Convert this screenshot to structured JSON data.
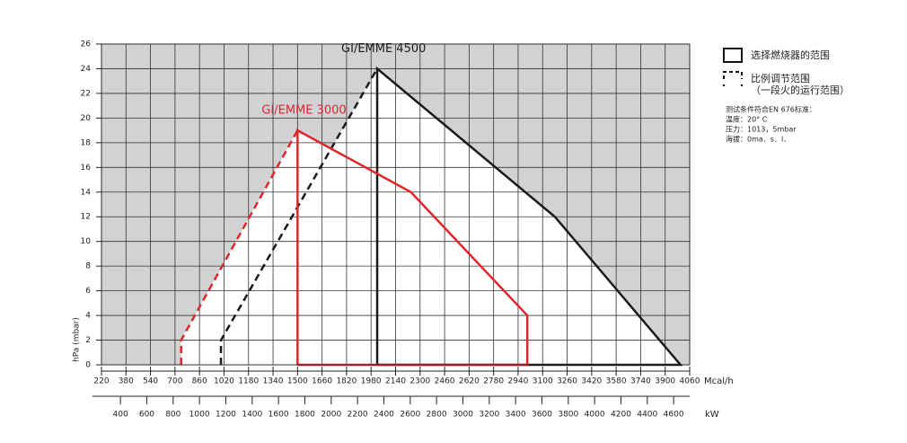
{
  "chart_data": {
    "type": "line",
    "y_label": "hPa (mbar)",
    "x_label": "Mcal/h",
    "x2_label": "kW",
    "xlim": [
      220,
      4060
    ],
    "xticks": [
      220,
      380,
      540,
      700,
      860,
      1020,
      1180,
      1340,
      1500,
      1660,
      1820,
      1980,
      2140,
      2300,
      2460,
      2620,
      2780,
      2940,
      3100,
      3260,
      3420,
      3580,
      3740,
      3900,
      4060
    ],
    "x2lim": [
      255.9,
      4721.8
    ],
    "x2ticks": [
      400,
      600,
      800,
      1000,
      1200,
      1400,
      1600,
      1800,
      2000,
      2200,
      2400,
      2600,
      2800,
      3000,
      3200,
      3400,
      3600,
      3800,
      4000,
      4200,
      4400,
      4600
    ],
    "ylim": [
      0,
      26
    ],
    "yticks": [
      0,
      2,
      4,
      6,
      8,
      10,
      12,
      14,
      16,
      18,
      20,
      22,
      24,
      26
    ],
    "grid": true,
    "background_color": "#d2d2d4",
    "series": [
      {
        "name": "GI/EMME 4500",
        "color": "#1a1a1a",
        "x": [
          2020,
          2020,
          3180,
          4000,
          2020
        ],
        "values": [
          0,
          24,
          12,
          0,
          0
        ],
        "dashed_x": [
          1000,
          1000,
          2020
        ],
        "dashed_values": [
          0,
          2,
          24
        ]
      },
      {
        "name": "GI/EMME 3000",
        "color": "#e0262b",
        "x": [
          1500,
          1500,
          2240,
          3000,
          3000,
          1500
        ],
        "values": [
          0,
          19,
          14,
          4,
          0,
          0
        ],
        "dashed_x": [
          740,
          740,
          1500
        ],
        "dashed_values": [
          0,
          2,
          19
        ]
      }
    ],
    "legend": [
      {
        "label": "选择燃烧器的范围",
        "style": "solid"
      },
      {
        "label": "比例调节范围",
        "label2": "（一段火的运行范围）",
        "style": "dashed"
      }
    ],
    "notes": [
      "测试条件符合EN 676标准：",
      "温度：20° C",
      "压力：1013，5mbar",
      "海拔：0ma．s．l．"
    ]
  }
}
